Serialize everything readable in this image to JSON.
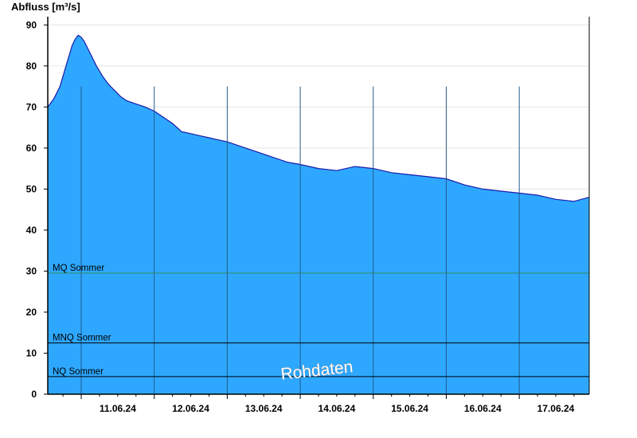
{
  "chart_data": {
    "type": "area",
    "ylabel": "Abfluss [m³/s]",
    "ylim": [
      0,
      92
    ],
    "yticks": [
      0,
      10,
      20,
      30,
      40,
      50,
      60,
      70,
      80,
      90
    ],
    "xlim": [
      "10.06.24 13:00",
      "17.06.24 23:00"
    ],
    "xtick_labels": [
      "11.06.24",
      "12.06.24",
      "13.06.24",
      "14.06.24",
      "15.06.24",
      "16.06.24",
      "17.06.24"
    ],
    "day_boundaries": [
      "11.06.24 00:00",
      "12.06.24 00:00",
      "13.06.24 00:00",
      "14.06.24 00:00",
      "15.06.24 00:00",
      "16.06.24 00:00",
      "17.06.24 00:00"
    ],
    "grid": true,
    "series": [
      {
        "x": [
          "10.06.24 13:00",
          "10.06.24 15:00",
          "10.06.24 17:00",
          "10.06.24 19:00",
          "10.06.24 21:00",
          "10.06.24 22:00",
          "10.06.24 23:00",
          "11.06.24 00:00",
          "11.06.24 01:00",
          "11.06.24 03:00",
          "11.06.24 05:00",
          "11.06.24 07:00",
          "11.06.24 09:00",
          "11.06.24 11:00",
          "11.06.24 13:00",
          "11.06.24 15:00",
          "11.06.24 17:00",
          "11.06.24 19:00",
          "11.06.24 21:00",
          "12.06.24 00:00",
          "12.06.24 03:00",
          "12.06.24 06:00",
          "12.06.24 09:00",
          "12.06.24 12:00",
          "12.06.24 15:00",
          "12.06.24 18:00",
          "12.06.24 21:00",
          "13.06.24 00:00",
          "13.06.24 04:00",
          "13.06.24 08:00",
          "13.06.24 12:00",
          "13.06.24 16:00",
          "13.06.24 20:00",
          "14.06.24 00:00",
          "14.06.24 06:00",
          "14.06.24 12:00",
          "14.06.24 18:00",
          "15.06.24 00:00",
          "15.06.24 06:00",
          "15.06.24 12:00",
          "15.06.24 18:00",
          "16.06.24 00:00",
          "16.06.24 06:00",
          "16.06.24 12:00",
          "16.06.24 18:00",
          "17.06.24 00:00",
          "17.06.24 06:00",
          "17.06.24 12:00",
          "17.06.24 18:00",
          "17.06.24 23:00"
        ],
        "values": [
          70,
          72,
          75,
          80,
          85,
          86.5,
          87.5,
          87,
          86,
          83,
          80,
          77.5,
          75.5,
          74,
          72.5,
          71.5,
          71,
          70.5,
          70,
          69,
          67.5,
          66,
          64,
          63.5,
          63,
          62.5,
          62,
          61.5,
          60.5,
          59.5,
          58.5,
          57.5,
          56.5,
          56,
          55,
          54.5,
          55.5,
          55,
          54,
          53.5,
          53,
          52.5,
          51,
          50,
          49.5,
          49,
          48.5,
          47.5,
          47,
          48
        ]
      }
    ],
    "reference_lines": [
      {
        "label": "MQ Sommer",
        "value": 29.5,
        "color": "#2e8b57"
      },
      {
        "label": "MNQ Sommer",
        "value": 12.5,
        "color": "#000000"
      },
      {
        "label": "NQ Sommer",
        "value": 4.3,
        "color": "#000000"
      }
    ],
    "watermark": "Rohdaten",
    "colors": {
      "fill": "#2ea8ff",
      "line": "#1a1aa8",
      "grid": "#e6e6e6"
    }
  }
}
